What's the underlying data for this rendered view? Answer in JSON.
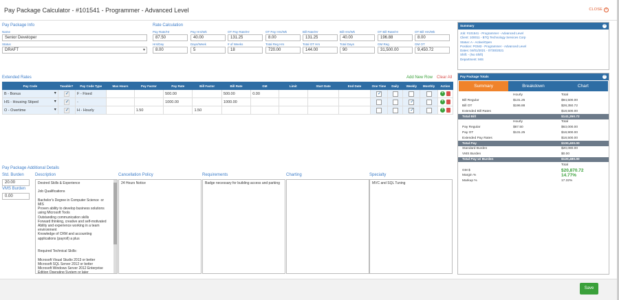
{
  "header": {
    "title": "Pay Package Calculator - #101541 - Programmer - Advanced Level",
    "close_label": "CLOSE",
    "close_icon": "x"
  },
  "info": {
    "section": "Pay Package Info",
    "name_label": "Name",
    "name_value": "Senior Developer",
    "status_label": "Status",
    "status_value": "DRAFT"
  },
  "rate_calc": {
    "section": "Rate Calculation",
    "row1": [
      {
        "label": "Pay Rate/Hr",
        "value": "87.50"
      },
      {
        "label": "Pay Hrs/Wk",
        "value": "40.00"
      },
      {
        "label": "OT Pay Rate/Hr",
        "value": "131.25"
      },
      {
        "label": "OT Pay Hrs/Wk",
        "value": "8.00"
      },
      {
        "label": "Bill Rate/Hr",
        "value": "131.25"
      },
      {
        "label": "Bill Hrs/Wk",
        "value": "40.00"
      },
      {
        "label": "OT Bill Rate/Hr",
        "value": "196.88"
      },
      {
        "label": "OT Bill Hrs/Wk",
        "value": "8.00"
      }
    ],
    "row2": [
      {
        "label": "Hrs/Day",
        "value": "8.00"
      },
      {
        "label": "Days/Week",
        "value": "5"
      },
      {
        "label": "# of Weeks",
        "value": "18"
      },
      {
        "label": "Total Reg Hrs",
        "value": "720.00"
      },
      {
        "label": "Total OT Hrs",
        "value": "144.00"
      },
      {
        "label": "Total Days",
        "value": "90"
      },
      {
        "label": "GM Reg",
        "value": "31,500.00"
      },
      {
        "label": "GM OT",
        "value": "9,450.72"
      }
    ]
  },
  "extended": {
    "section": "Extended Rates",
    "add_row": "Add New Row",
    "clear_all": "Clear All",
    "columns": [
      "Pay Code",
      "Taxable?",
      "Pay Code Type",
      "Max Hours",
      "Pay Factor",
      "Pay Rate",
      "Bill Factor",
      "Bill Rate",
      "GM",
      "Limit",
      "Start Date",
      "End Date",
      "One Time",
      "Daily",
      "Weekly",
      "Monthly",
      "Action"
    ],
    "rows": [
      {
        "code": "B - Bonus",
        "type": "F - Fixed",
        "pay_factor": "",
        "pay_rate": "500.00",
        "bill_factor": "",
        "bill_rate": "500.00",
        "gm": "0.00",
        "one_time": true,
        "weekly": false
      },
      {
        "code": "HS - Housing Stiped",
        "type": "-",
        "pay_factor": "",
        "pay_rate": "1000.00",
        "bill_factor": "",
        "bill_rate": "1000.00",
        "gm": "",
        "one_time": false,
        "weekly": true
      },
      {
        "code": "O - Overtime",
        "type": "H - Hourly",
        "pay_factor": "1.50",
        "pay_rate": "",
        "bill_factor": "1.50",
        "bill_rate": "",
        "gm": "",
        "one_time": false,
        "weekly": true
      }
    ]
  },
  "details": {
    "section": "Pay Package Additional Details",
    "std_burden_label": "Std. Burden",
    "std_burden_value": "20.00",
    "vms_burden_label": "VMS Burden",
    "vms_burden_value": "0.00",
    "description_label": "Description",
    "description": "Desired Skills & Experience\n\nJob Qualifications\n\nBachelor's Degree in Computer Science  or MIS\nProven ability to develop business solutions using Microsoft Tools\nOutstanding communication skills\nForward thinking, creative and self-motivated\nAbility and experience working in a team environment\nKnowledge of CRM and accounting applications (payroll) a plus\n\n\nRequired Technical Skills:\n\nMicrosoft Visual Studio 2013 or better\nMicrosoft SQL Server 2012 or better\nMicrosoft Windows Server 2012 Enterprise Edition Operating System or later\n.NET, MVC, ASP.NET Web Application",
    "cancellation_label": "Cancellation Policy",
    "cancellation": "24 Hours Notice",
    "requirements_label": "Requirements",
    "requirements": "Badge necessary for building access and parking",
    "charting_label": "Charting",
    "charting": "",
    "specialty_label": "Specialty",
    "specialty": "MVC and SQL Tuning"
  },
  "summary": {
    "title": "Summary",
    "lines": [
      "Job: #101541 - Programmer - Advanced Level",
      "Client: 100011 - BTQ Technology Services Corp",
      "Status: A - Active/Open",
      "Position: PGM3 - Programmer - Advanced Level",
      "Dates: 04/01/2021 - 07/30/2021",
      "Shift: - (No Shift)",
      "Department: MIS"
    ]
  },
  "totals": {
    "title": "Pay Package Totals",
    "tabs": [
      "Summary",
      "Breakdown",
      "Chart"
    ],
    "rows": [
      {
        "k": "",
        "h": "Hourly",
        "t": "Total",
        "cls": "hd"
      },
      {
        "k": "Bill Regular",
        "h": "$131.25",
        "t": "$94,500.00",
        "cls": ""
      },
      {
        "k": "Bill OT",
        "h": "$196.88",
        "t": "$28,350.72",
        "cls": ""
      },
      {
        "k": "Extended Bill Rates",
        "h": "",
        "t": "$18,500.00",
        "cls": ""
      },
      {
        "k": "Total Bill",
        "h": "",
        "t": "$141,350.72",
        "cls": "tot"
      },
      {
        "k": "",
        "h": "Hourly",
        "t": "Total",
        "cls": "hd"
      },
      {
        "k": "Pay Regular",
        "h": "$87.50",
        "t": "$63,000.00",
        "cls": ""
      },
      {
        "k": "Pay OT",
        "h": "$131.25",
        "t": "$18,900.00",
        "cls": ""
      },
      {
        "k": "Extended Pay Rates",
        "h": "",
        "t": "$18,500.00",
        "cls": ""
      },
      {
        "k": "Total Pay",
        "h": "",
        "t": "$100,400.00",
        "cls": "tot"
      },
      {
        "k": "Standard Burden",
        "h": "",
        "t": "$20,080.00",
        "cls": ""
      },
      {
        "k": "VMS Burden",
        "h": "",
        "t": "$0.00",
        "cls": ""
      },
      {
        "k": "Total Pay w/ Burden",
        "h": "",
        "t": "$120,480.00",
        "cls": "tot"
      },
      {
        "k": "",
        "h": "",
        "t": "Total",
        "cls": "hd"
      },
      {
        "k": "GM $",
        "h": "",
        "t": "$20,870.72",
        "cls": "big"
      },
      {
        "k": "Margin %",
        "h": "",
        "t": "14.77%",
        "cls": "big"
      },
      {
        "k": "Markup %",
        "h": "",
        "t": "17.32%",
        "cls": ""
      }
    ]
  },
  "footer": {
    "save_label": "Save"
  }
}
